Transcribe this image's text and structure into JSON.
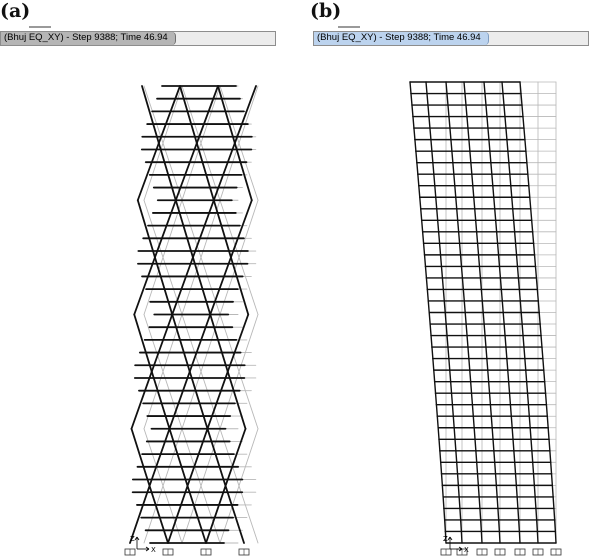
{
  "panels": [
    {
      "label": "(a)",
      "title": "(Bhuj EQ_XY) - Step 9388; Time 46.94"
    },
    {
      "label": "(b)",
      "title": "(Bhuj EQ_XY) - Step 9388; Time 46.94"
    }
  ],
  "axis": {
    "z_label": "Z",
    "x_label": "X"
  },
  "colors": {
    "deformed": "#111111",
    "undeformed": "#b8b8b8",
    "tab_a": "#b5b5b5",
    "tab_b": "#bcd3ee"
  },
  "icons": {
    "support": "fixed-support-icon",
    "axis_triad": "axis-triad-icon"
  }
}
